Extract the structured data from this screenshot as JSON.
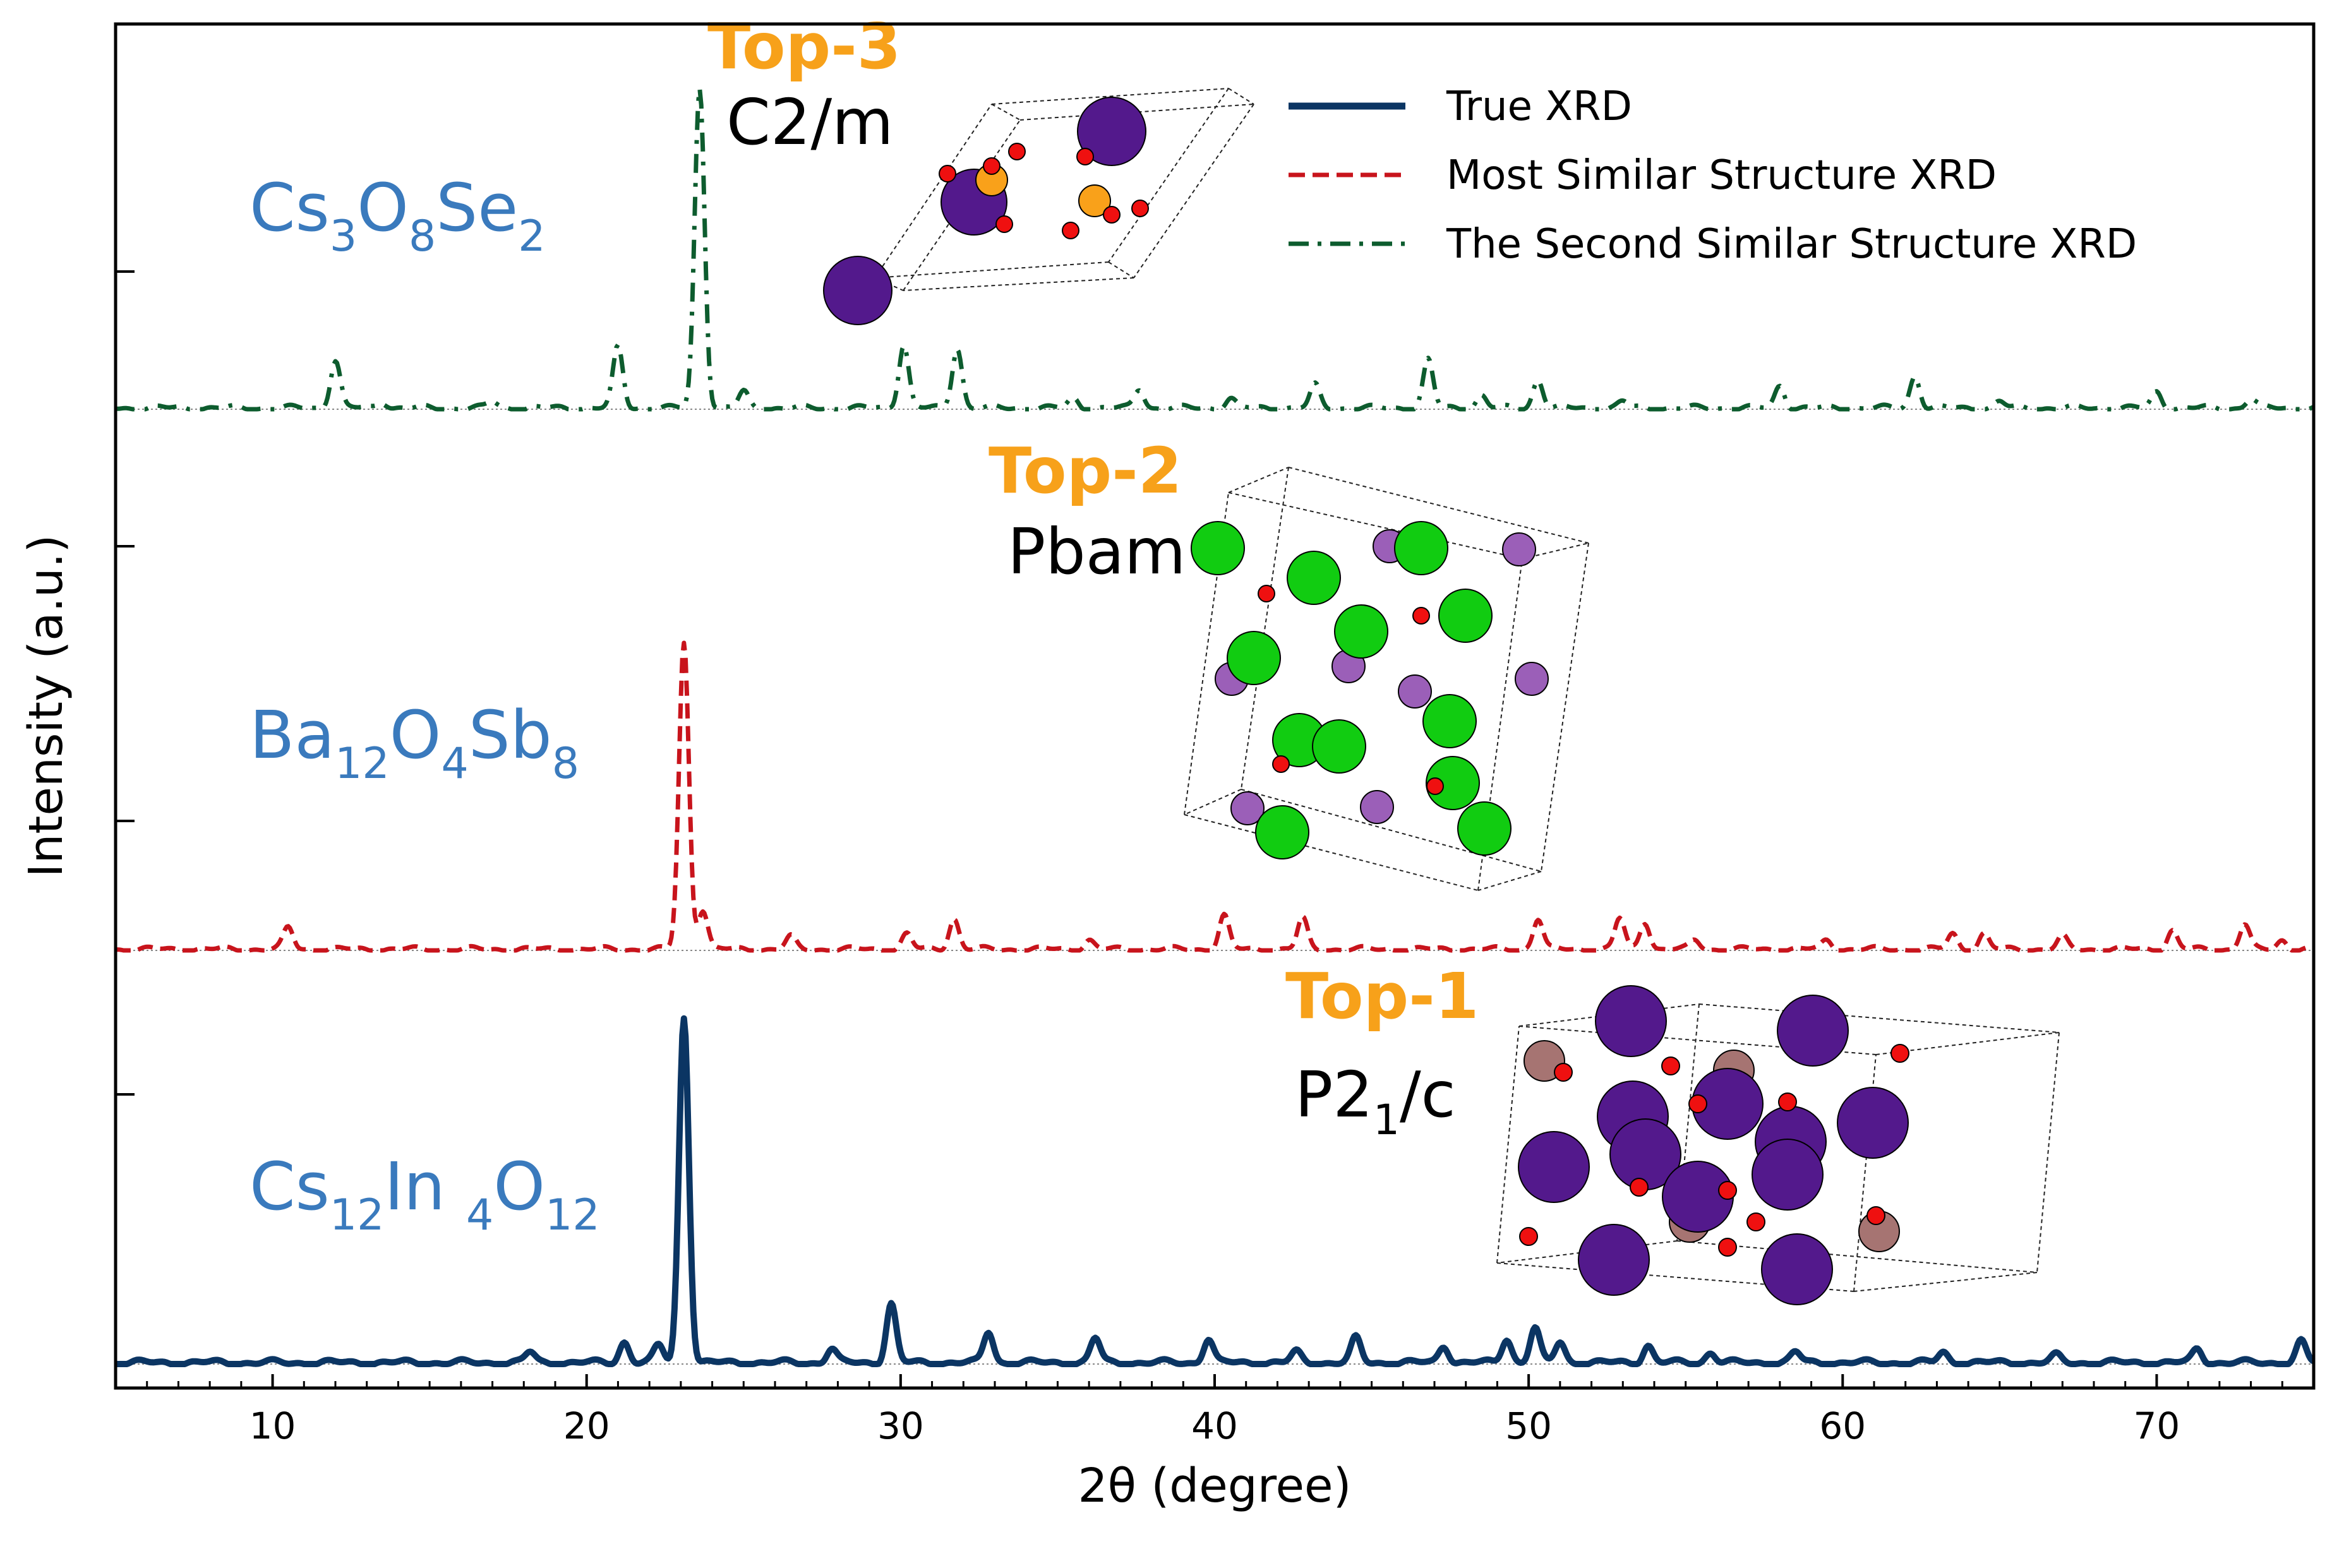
{
  "chart_data": {
    "type": "line",
    "xlabel": "2θ (degree)",
    "ylabel": "Intensity (a.u.)",
    "xlim": [
      5,
      75
    ],
    "x_ticks": [
      "10",
      "20",
      "30",
      "40",
      "50",
      "60",
      "70"
    ],
    "y_ticks": "unlabeled",
    "grid": false,
    "legend_position": "top-right",
    "legend": [
      {
        "label": "True XRD",
        "style": "solid",
        "color": "#0b3563"
      },
      {
        "label": "Most Similar Structure XRD",
        "style": "dashed",
        "color": "#c8141c"
      },
      {
        "label": "The Second Similar Structure XRD",
        "style": "dashdot",
        "color": "#0d5c2e"
      }
    ],
    "panels": [
      {
        "formula": [
          "Cs",
          "3",
          "O",
          "8",
          "Se",
          "2"
        ],
        "rank": "Top-3",
        "space_group": [
          "C2/m"
        ],
        "series_color": "#0d5c2e",
        "peaks": [
          [
            12.0,
            0.15
          ],
          [
            13.5,
            0.02
          ],
          [
            17.0,
            0.02
          ],
          [
            21.0,
            0.19
          ],
          [
            23.6,
            1.0
          ],
          [
            25.0,
            0.05
          ],
          [
            30.1,
            0.2
          ],
          [
            31.8,
            0.19
          ],
          [
            35.5,
            0.03
          ],
          [
            37.6,
            0.06
          ],
          [
            40.5,
            0.03
          ],
          [
            43.2,
            0.07
          ],
          [
            46.8,
            0.15
          ],
          [
            48.5,
            0.04
          ],
          [
            50.3,
            0.09
          ],
          [
            53.0,
            0.02
          ],
          [
            58.0,
            0.07
          ],
          [
            62.3,
            0.1
          ],
          [
            65.0,
            0.02
          ],
          [
            70.0,
            0.05
          ],
          [
            73.0,
            0.03
          ]
        ]
      },
      {
        "formula": [
          "Ba",
          "12",
          "O",
          "4",
          "Sb",
          "8"
        ],
        "rank": "Top-2",
        "space_group": [
          "Pbam"
        ],
        "series_color": "#c8141c",
        "peaks": [
          [
            10.5,
            0.07
          ],
          [
            23.1,
            1.0
          ],
          [
            23.7,
            0.13
          ],
          [
            26.5,
            0.04
          ],
          [
            30.2,
            0.05
          ],
          [
            31.7,
            0.1
          ],
          [
            36.0,
            0.03
          ],
          [
            40.3,
            0.11
          ],
          [
            42.8,
            0.1
          ],
          [
            50.3,
            0.1
          ],
          [
            52.9,
            0.1
          ],
          [
            53.7,
            0.09
          ],
          [
            55.3,
            0.03
          ],
          [
            59.5,
            0.03
          ],
          [
            63.5,
            0.05
          ],
          [
            64.5,
            0.05
          ],
          [
            67.0,
            0.04
          ],
          [
            70.5,
            0.06
          ],
          [
            72.8,
            0.08
          ],
          [
            74.0,
            0.03
          ]
        ]
      },
      {
        "formula": [
          "Cs",
          "12",
          "In ",
          "4",
          "O",
          "12"
        ],
        "rank": "Top-1",
        "space_group": [
          "P2",
          "1",
          "/c"
        ],
        "series_color": "#0b3563",
        "peaks": [
          [
            18.2,
            0.03
          ],
          [
            21.2,
            0.06
          ],
          [
            22.3,
            0.05
          ],
          [
            23.1,
            1.0
          ],
          [
            27.8,
            0.04
          ],
          [
            29.7,
            0.17
          ],
          [
            32.8,
            0.09
          ],
          [
            36.2,
            0.07
          ],
          [
            39.8,
            0.07
          ],
          [
            42.6,
            0.03
          ],
          [
            44.5,
            0.07
          ],
          [
            47.3,
            0.05
          ],
          [
            49.3,
            0.07
          ],
          [
            50.2,
            0.1
          ],
          [
            51.0,
            0.06
          ],
          [
            53.8,
            0.05
          ],
          [
            55.8,
            0.03
          ],
          [
            58.5,
            0.03
          ],
          [
            63.2,
            0.03
          ],
          [
            66.8,
            0.02
          ],
          [
            71.3,
            0.04
          ],
          [
            74.6,
            0.06
          ]
        ]
      }
    ]
  }
}
